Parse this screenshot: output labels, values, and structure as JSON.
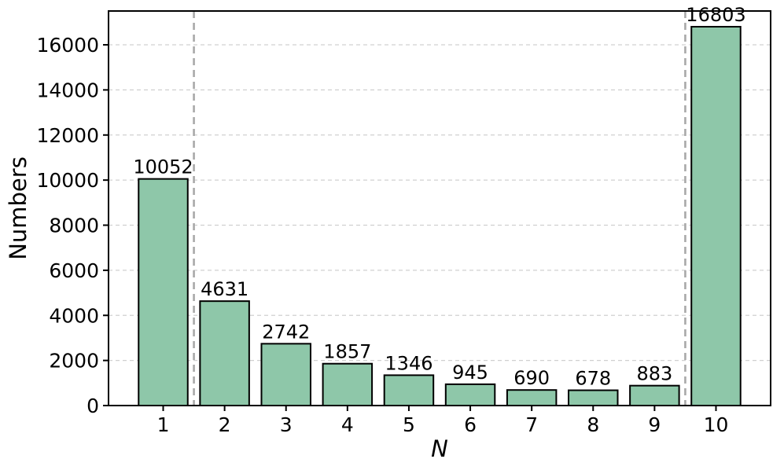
{
  "chart_data": {
    "type": "bar",
    "title": "",
    "xlabel": "N",
    "ylabel": "Numbers",
    "categories": [
      "1",
      "2",
      "3",
      "4",
      "5",
      "6",
      "7",
      "8",
      "9",
      "10"
    ],
    "values": [
      10052,
      4631,
      2742,
      1857,
      1346,
      945,
      690,
      678,
      883,
      16803
    ],
    "bar_labels": [
      "10052",
      "4631",
      "2742",
      "1857",
      "1346",
      "945",
      "690",
      "678",
      "883",
      "16803"
    ],
    "yticks": [
      "0",
      "2000",
      "4000",
      "6000",
      "8000",
      "10000",
      "12000",
      "14000",
      "16000"
    ],
    "ytick_values": [
      0,
      2000,
      4000,
      6000,
      8000,
      10000,
      12000,
      14000,
      16000
    ],
    "ylim": [
      0,
      17500
    ],
    "xlim": [
      0.11,
      10.89
    ],
    "bar_positions": [
      1,
      2,
      3,
      4,
      5,
      6,
      7,
      8,
      9,
      10
    ],
    "bar_width": 0.8,
    "vlines": [
      1.5,
      9.5
    ],
    "grid": "horizontal-dashed",
    "legend": null,
    "colors": {
      "bar_fill": "#8ec7a9",
      "bar_edge": "#000000",
      "gridline": "#d0d0d0",
      "vline": "#a9a9a9",
      "axis": "#000000",
      "text": "#000000",
      "background": "#ffffff"
    }
  }
}
